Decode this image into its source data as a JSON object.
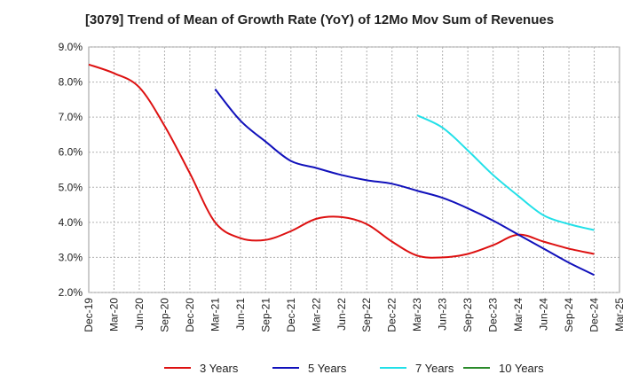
{
  "chart_data": {
    "type": "line",
    "title": "[3079]  Trend of Mean of Growth Rate (YoY) of 12Mo Mov Sum of Revenues",
    "xlabel": "",
    "ylabel": "",
    "ylim": [
      2.0,
      9.0
    ],
    "yticks": [
      2.0,
      3.0,
      4.0,
      5.0,
      6.0,
      7.0,
      8.0,
      9.0
    ],
    "ytick_labels": [
      "2.0%",
      "3.0%",
      "4.0%",
      "5.0%",
      "6.0%",
      "7.0%",
      "8.0%",
      "9.0%"
    ],
    "x_categories": [
      "Dec-19",
      "Mar-20",
      "Jun-20",
      "Sep-20",
      "Dec-20",
      "Mar-21",
      "Jun-21",
      "Sep-21",
      "Dec-21",
      "Mar-22",
      "Jun-22",
      "Sep-22",
      "Dec-22",
      "Mar-23",
      "Jun-23",
      "Sep-23",
      "Dec-23",
      "Mar-24",
      "Jun-24",
      "Sep-24",
      "Dec-24",
      "Mar-25"
    ],
    "grid": true,
    "legend_position": "bottom",
    "series": [
      {
        "name": "3 Years",
        "color": "#dd1111",
        "start_index": 0,
        "values": [
          8.5,
          8.25,
          7.85,
          6.75,
          5.4,
          4.0,
          3.55,
          3.5,
          3.75,
          4.1,
          4.15,
          3.95,
          3.45,
          3.05,
          3.0,
          3.1,
          3.35,
          3.65,
          3.45,
          3.25,
          3.1
        ]
      },
      {
        "name": "5 Years",
        "color": "#1111bb",
        "start_index": 5,
        "values": [
          7.8,
          6.9,
          6.3,
          5.75,
          5.55,
          5.35,
          5.2,
          5.1,
          4.9,
          4.7,
          4.4,
          4.05,
          3.65,
          3.25,
          2.85,
          2.5
        ]
      },
      {
        "name": "7 Years",
        "color": "#22e0e8",
        "start_index": 13,
        "values": [
          7.05,
          6.7,
          6.05,
          5.35,
          4.75,
          4.2,
          3.95,
          3.78
        ]
      },
      {
        "name": "10 Years",
        "color": "#2a8a2a",
        "start_index": 0,
        "values": []
      }
    ]
  }
}
